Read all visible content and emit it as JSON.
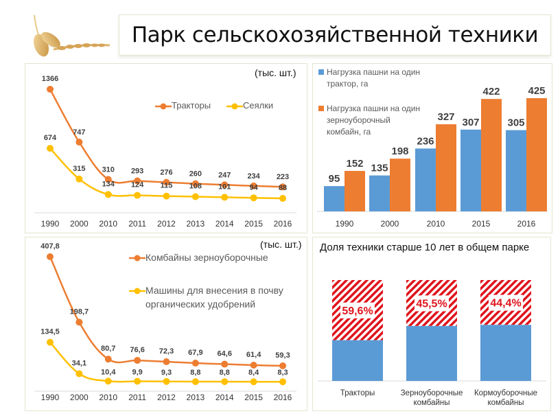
{
  "header": {
    "title": "Парк сельскохозяйственной техники",
    "logo_icon": "wheat-icon"
  },
  "colors": {
    "orange": "#ed7d31",
    "yellow": "#ffc000",
    "blue": "#5b9bd5",
    "red": "#e0131b"
  },
  "chart_data": [
    {
      "type": "line",
      "unit_label": "(тыс. шт.)",
      "categories": [
        "1990",
        "2000",
        "2010",
        "2011",
        "2012",
        "2013",
        "2014",
        "2015",
        "2016"
      ],
      "series": [
        {
          "name": "Тракторы",
          "color": "#ed7d31",
          "values": [
            1366,
            747,
            310,
            293,
            276,
            260,
            247,
            234,
            223
          ],
          "labels": [
            "1366",
            "747",
            "310",
            "293",
            "276",
            "260",
            "247",
            "234",
            "223"
          ]
        },
        {
          "name": "Сеялки",
          "color": "#ffc000",
          "values": [
            674,
            315,
            134,
            124,
            115,
            108,
            101,
            94,
            88
          ],
          "labels": [
            "674",
            "315",
            "134",
            "124",
            "115",
            "108",
            "101",
            "94",
            "88"
          ]
        }
      ],
      "ylim": [
        0,
        1366
      ],
      "legend": "top-right",
      "grid": false
    },
    {
      "type": "bar",
      "categories": [
        "1990",
        "2000",
        "2010",
        "2015",
        "2016"
      ],
      "series": [
        {
          "name": "Нагрузка пашни на один трактор, га",
          "legend_lines": [
            "Нагрузка пашни на один",
            "трактор, га"
          ],
          "color": "#5b9bd5",
          "values": [
            95,
            135,
            236,
            307,
            305
          ]
        },
        {
          "name": "Нагрузка пашни на один зерноуборочный комбайн, га",
          "legend_lines": [
            "Нагрузка пашни на один",
            "зерноуборочный",
            "комбайн, га"
          ],
          "color": "#ed7d31",
          "values": [
            152,
            198,
            327,
            422,
            425
          ]
        }
      ],
      "ylim": [
        0,
        425
      ],
      "legend": "top-left",
      "grid": false
    },
    {
      "type": "line",
      "unit_label": "(тыс. шт.)",
      "categories": [
        "1990",
        "2000",
        "2010",
        "2011",
        "2012",
        "2013",
        "2014",
        "2015",
        "2016"
      ],
      "series": [
        {
          "name": "Комбайны зерноуборочные",
          "legend_lines": [
            "Комбайны зерноуборочные"
          ],
          "color": "#ed7d31",
          "values": [
            407.8,
            198.7,
            80.7,
            76.6,
            72.3,
            67.9,
            64.6,
            61.4,
            59.3
          ],
          "labels": [
            "407,8",
            "198,7",
            "80,7",
            "76,6",
            "72,3",
            "67,9",
            "64,6",
            "61,4",
            "59,3"
          ]
        },
        {
          "name": "Машины для внесения в почву органических удобрений",
          "legend_lines": [
            "Машины для внесения в почву",
            "органических удобрений"
          ],
          "color": "#ffc000",
          "values": [
            134.5,
            34.1,
            10.4,
            9.9,
            9.3,
            8.8,
            8.8,
            8.4,
            8.3
          ],
          "labels": [
            "134,5",
            "34,1",
            "10,4",
            "9,9",
            "9,3",
            "8,8",
            "8,8",
            "8,4",
            "8,3"
          ]
        }
      ],
      "ylim": [
        0,
        407.8
      ],
      "legend": "top-right",
      "grid": false
    },
    {
      "type": "bar",
      "stacked": true,
      "title": "Доля техники старше 10 лет в общем парке",
      "categories": [
        {
          "label": "Тракторы",
          "lines": [
            "Тракторы"
          ]
        },
        {
          "label": "Зерноуборочные комбайны",
          "lines": [
            "Зерноуборочные",
            "комбайны"
          ]
        },
        {
          "label": "Кормоуборочные комбайны",
          "lines": [
            "Кормоуборочные",
            "комбайны"
          ]
        }
      ],
      "values_percent": [
        59.6,
        45.5,
        44.4
      ],
      "labels": [
        "59,6%",
        "45,5%",
        "44,4%"
      ],
      "ylim": [
        0,
        100
      ]
    }
  ]
}
